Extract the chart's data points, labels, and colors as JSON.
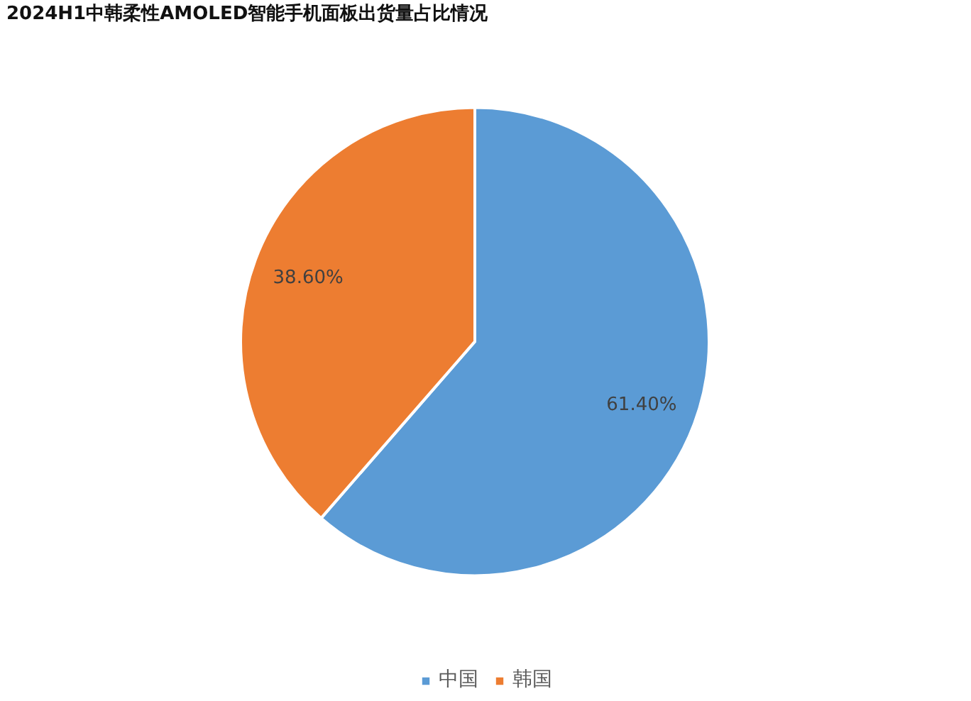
{
  "chart_data": {
    "type": "pie",
    "title": "2024H1中韩柔性AMOLED智能手机面板出货量占比情况",
    "categories": [
      "中国",
      "韩国"
    ],
    "values": [
      61.4,
      38.6
    ],
    "colors": [
      "#5b9bd5",
      "#ed7d31"
    ],
    "value_labels": [
      "61.40%",
      "38.60%"
    ],
    "legend": "bottom"
  }
}
